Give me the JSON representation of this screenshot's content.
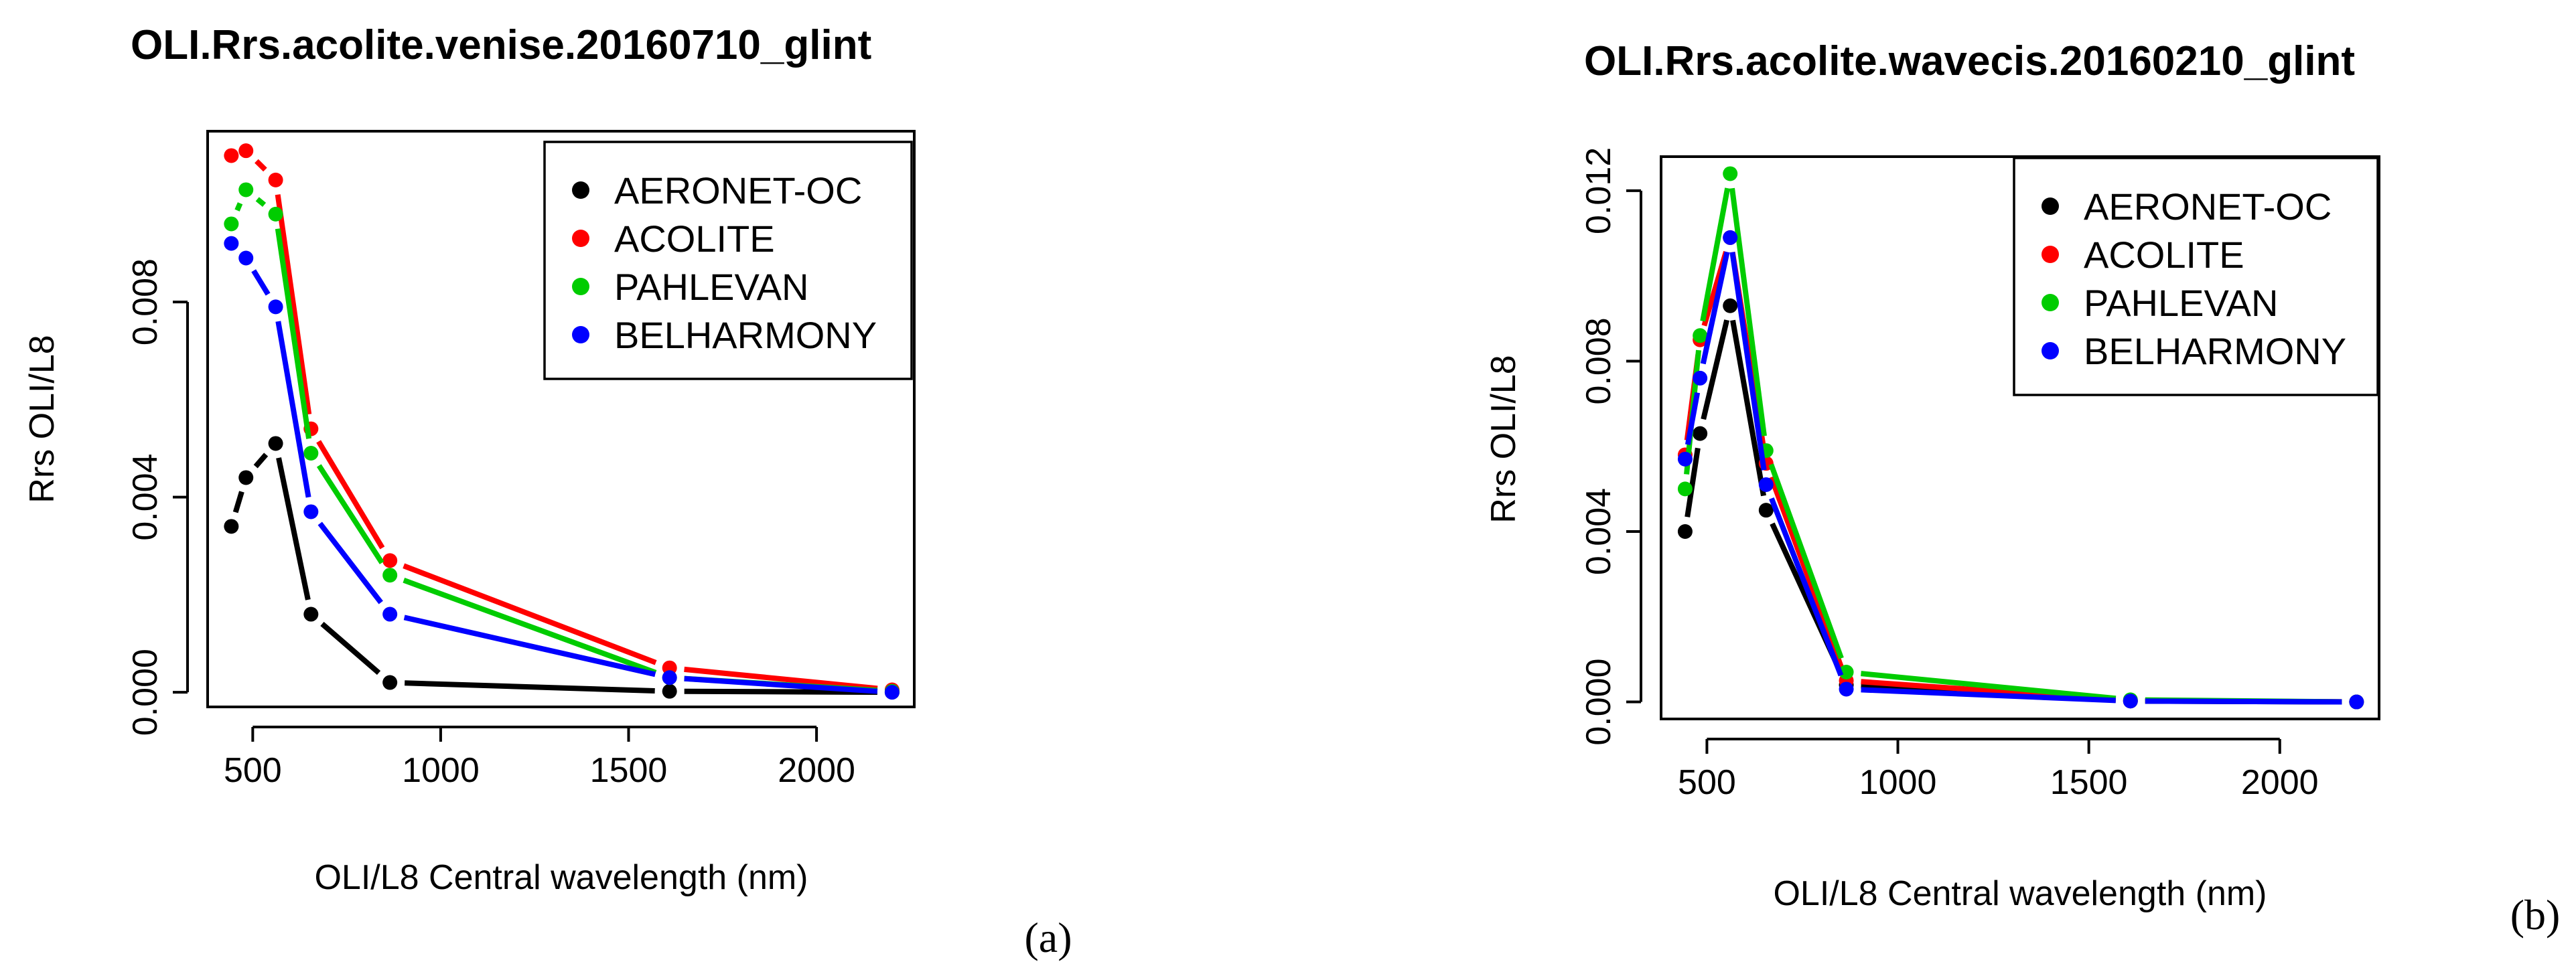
{
  "chart_data": [
    {
      "type": "line",
      "title": "OLI.Rrs.acolite.venise.20160710_glint",
      "xlabel": "OLI/L8 Central wavelength (nm)",
      "ylabel": "Rrs OLI/L8",
      "xlim": [
        380,
        2260
      ],
      "ylim": [
        -0.0003,
        0.0115
      ],
      "xticks": [
        500,
        1000,
        1500,
        2000
      ],
      "yticks": [
        0.0,
        0.004,
        0.008
      ],
      "xtick_labels": [
        "500",
        "1000",
        "1500",
        "2000"
      ],
      "ytick_labels": [
        "0.000",
        "0.004",
        "0.008"
      ],
      "legend_position": "top-right",
      "panel_label": "(a)",
      "x": [
        443,
        482,
        561,
        655,
        865,
        1609,
        2201
      ],
      "series": [
        {
          "name": "AERONET-OC",
          "color": "#000000",
          "values": [
            0.0034,
            0.0044,
            0.0051,
            0.0016,
            0.0002,
            2e-05,
            0.0
          ]
        },
        {
          "name": "ACOLITE",
          "color": "#ff0000",
          "values": [
            0.011,
            0.0111,
            0.0105,
            0.0054,
            0.0027,
            0.0005,
            5e-05
          ]
        },
        {
          "name": "PAHLEVAN",
          "color": "#00cc00",
          "values": [
            0.0096,
            0.0103,
            0.0098,
            0.0049,
            0.0024,
            0.0003,
            2e-05
          ]
        },
        {
          "name": "BELHARMONY",
          "color": "#0000ff",
          "values": [
            0.0092,
            0.0089,
            0.0079,
            0.0037,
            0.0016,
            0.0003,
            0.0
          ]
        }
      ]
    },
    {
      "type": "line",
      "title": "OLI.Rrs.acolite.wavecis.20160210_glint",
      "xlabel": "OLI/L8 Central wavelength (nm)",
      "ylabel": "Rrs OLI/L8",
      "xlim": [
        380,
        2260
      ],
      "ylim": [
        -0.0004,
        0.0128
      ],
      "xticks": [
        500,
        1000,
        1500,
        2000
      ],
      "yticks": [
        0.0,
        0.004,
        0.008,
        0.012
      ],
      "xtick_labels": [
        "500",
        "1000",
        "1500",
        "2000"
      ],
      "ytick_labels": [
        "0.000",
        "0.004",
        "0.008",
        "0.012"
      ],
      "legend_position": "top-right",
      "panel_label": "(b)",
      "x": [
        443,
        482,
        561,
        655,
        865,
        1609,
        2201
      ],
      "series": [
        {
          "name": "AERONET-OC",
          "color": "#000000",
          "values": [
            0.004,
            0.0063,
            0.0093,
            0.0045,
            0.0004,
            2e-05,
            0.0
          ]
        },
        {
          "name": "ACOLITE",
          "color": "#ff0000",
          "values": [
            0.0058,
            0.0085,
            0.0109,
            0.0056,
            0.0005,
            3e-05,
            0.0
          ]
        },
        {
          "name": "PAHLEVAN",
          "color": "#00cc00",
          "values": [
            0.005,
            0.0086,
            0.0124,
            0.0059,
            0.0007,
            5e-05,
            0.0
          ]
        },
        {
          "name": "BELHARMONY",
          "color": "#0000ff",
          "values": [
            0.0057,
            0.0076,
            0.0109,
            0.0051,
            0.0003,
            2e-05,
            0.0
          ]
        }
      ]
    }
  ]
}
